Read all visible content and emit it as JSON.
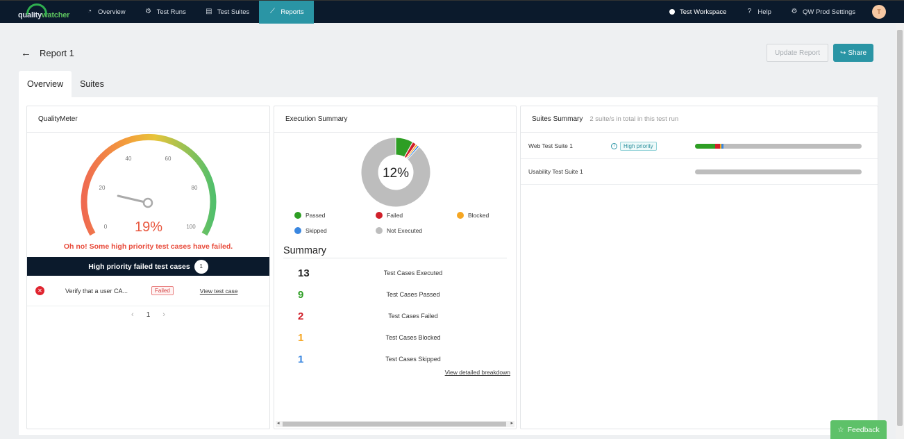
{
  "brand": {
    "logo_text_a": "quality",
    "logo_text_b": "watcher"
  },
  "nav": {
    "items": [
      {
        "label": "Overview",
        "icon": "dashboard-icon"
      },
      {
        "label": "Test Runs",
        "icon": "gear-icon"
      },
      {
        "label": "Test Suites",
        "icon": "document-icon"
      },
      {
        "label": "Reports",
        "icon": "chart-icon",
        "active": true
      }
    ],
    "workspace": "Test Workspace",
    "help": "Help",
    "settings": "QW Prod Settings",
    "avatar_initial": "T"
  },
  "page": {
    "title": "Report 1",
    "update_button": "Update Report",
    "share_button": "Share"
  },
  "tabs": [
    {
      "label": "Overview",
      "active": true
    },
    {
      "label": "Suites",
      "active": false
    }
  ],
  "quality_meter": {
    "title": "QualityMeter",
    "value_label": "19%",
    "value": 19,
    "scale_labels": [
      "0",
      "20",
      "40",
      "60",
      "80",
      "100"
    ],
    "message": "Oh no! Some high priority test cases have failed.",
    "hp_title": "High priority failed test cases",
    "hp_count": "1",
    "failed_cases": [
      {
        "name": "Verify that a user CA...",
        "status": "Failed",
        "link": "View test case"
      }
    ],
    "page": "1"
  },
  "execution": {
    "title": "Execution Summary",
    "center_label": "12%",
    "legend": [
      {
        "label": "Passed",
        "color": "#2e9e24"
      },
      {
        "label": "Failed",
        "color": "#d0202a"
      },
      {
        "label": "Blocked",
        "color": "#f5a623"
      },
      {
        "label": "Skipped",
        "color": "#3a87e0"
      },
      {
        "label": "Not Executed",
        "color": "#bdbdbd"
      }
    ],
    "summary_title": "Summary",
    "summary": [
      {
        "num": "13",
        "label": "Test Cases Executed",
        "color": "#222222"
      },
      {
        "num": "9",
        "label": "Test Cases Passed",
        "color": "#2e9e24"
      },
      {
        "num": "2",
        "label": "Test Cases Failed",
        "color": "#d0202a"
      },
      {
        "num": "1",
        "label": "Test Cases Blocked",
        "color": "#f5a623"
      },
      {
        "num": "1",
        "label": "Test Cases Skipped",
        "color": "#3a87e0"
      }
    ],
    "detail_link": "View detailed breakdown"
  },
  "chart_data": {
    "type": "pie",
    "categories": [
      "Passed",
      "Failed",
      "Blocked",
      "Skipped",
      "Not Executed"
    ],
    "values": [
      9,
      2,
      1,
      1,
      97
    ],
    "center_label": "12%"
  },
  "suites": {
    "title": "Suites Summary",
    "subtitle": "2 suite/s in total in this test run",
    "rows": [
      {
        "name": "Web Test Suite 1",
        "tag": "High priority",
        "segments": [
          {
            "pct": 12,
            "color": "#2e9e24"
          },
          {
            "pct": 3,
            "color": "#d0202a"
          },
          {
            "pct": 1,
            "color": "#f5a623"
          },
          {
            "pct": 1,
            "color": "#3a87e0"
          }
        ]
      },
      {
        "name": "Usability Test Suite 1",
        "tag": "",
        "segments": []
      }
    ]
  },
  "feedback": "Feedback"
}
